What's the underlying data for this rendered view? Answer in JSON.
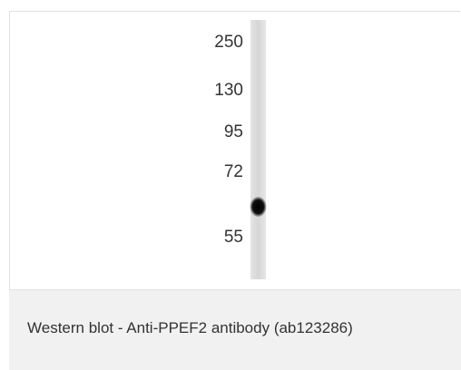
{
  "figure": {
    "markers": [
      "250",
      "130",
      "95",
      "72",
      "55"
    ],
    "caption": "Western blot - Anti-PPEF2 antibody (ab123286)"
  }
}
